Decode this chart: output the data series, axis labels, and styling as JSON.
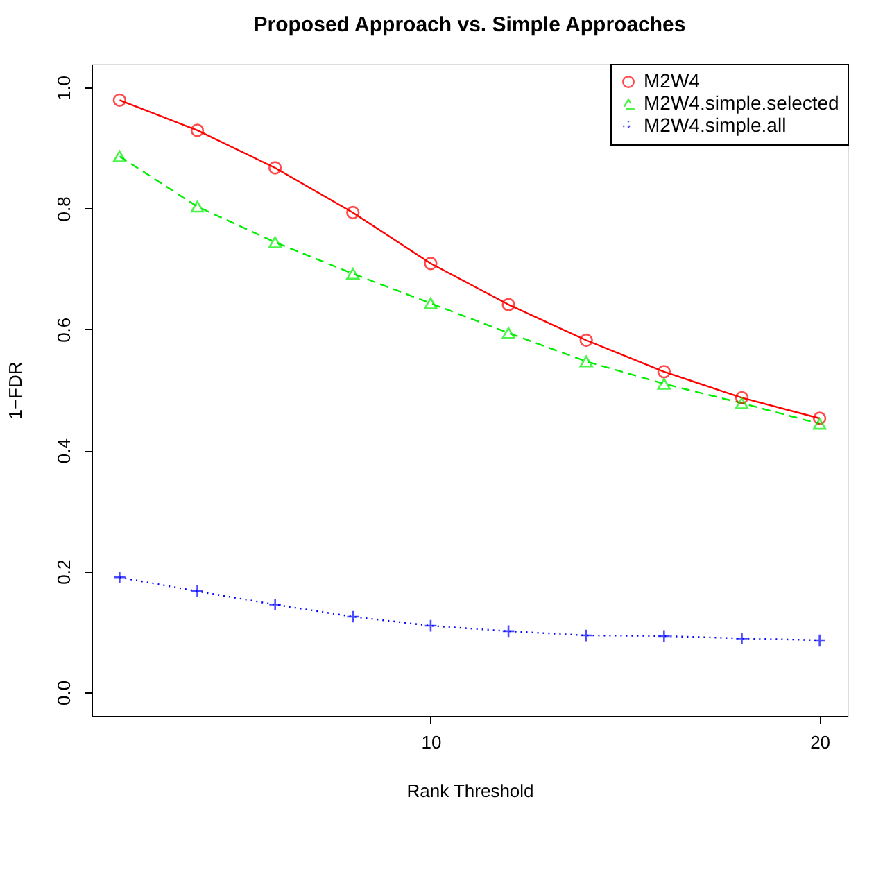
{
  "chart_data": {
    "type": "line",
    "title": "Proposed Approach vs. Simple Approaches",
    "xlabel": "Rank Threshold",
    "ylabel": "1−FDR",
    "x": [
      2,
      4,
      6,
      8,
      10,
      12,
      14,
      16,
      18,
      20
    ],
    "series": [
      {
        "name": "M2W4",
        "color": "#ff0000",
        "marker": "circle",
        "line_style": "solid",
        "values": [
          0.979,
          0.929,
          0.867,
          0.793,
          0.709,
          0.641,
          0.582,
          0.53,
          0.487,
          0.453
        ]
      },
      {
        "name": "M2W4.simple.selected",
        "color": "#00ee00",
        "marker": "triangle",
        "line_style": "dashed",
        "values": [
          0.886,
          0.803,
          0.744,
          0.692,
          0.643,
          0.594,
          0.547,
          0.51,
          0.478,
          0.444
        ]
      },
      {
        "name": "M2W4.simple.all",
        "color": "#0000ff",
        "marker": "cross",
        "line_style": "dotted",
        "values": [
          0.19,
          0.167,
          0.145,
          0.125,
          0.11,
          0.101,
          0.094,
          0.093,
          0.089,
          0.086
        ]
      }
    ],
    "xlim": [
      1.28,
      20.72
    ],
    "xticks": [
      10,
      20
    ],
    "ylim": [
      -0.039,
      1.039
    ],
    "yticks": [
      {
        "value": 0,
        "label": "0.0"
      },
      {
        "value": 0.2,
        "label": "0.2"
      },
      {
        "value": 0.4,
        "label": "0.4"
      },
      {
        "value": 0.6,
        "label": "0.6"
      },
      {
        "value": 0.8,
        "label": "0.8"
      },
      {
        "value": 1,
        "label": "1.0"
      }
    ],
    "grid": false,
    "legend": "top right"
  }
}
